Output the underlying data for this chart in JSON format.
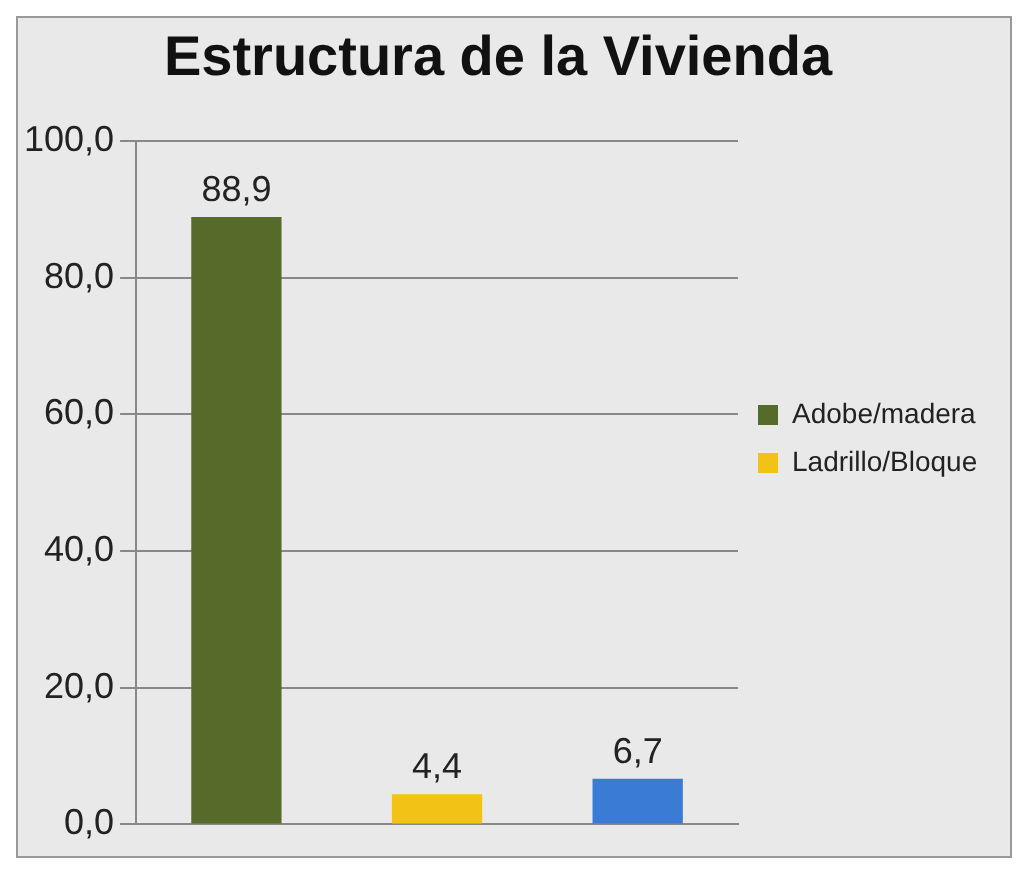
{
  "chart_data": {
    "type": "bar",
    "title": "Estructura de la Vivienda",
    "categories": [
      null,
      null,
      null
    ],
    "series": [
      {
        "name": "Adobe/madera",
        "color": "#566b2a",
        "values": [
          88.9,
          null,
          null
        ],
        "value_labels": [
          "88,9",
          null,
          null
        ]
      },
      {
        "name": "Ladrillo/Bloque",
        "color": "#f2c314",
        "values": [
          null,
          4.4,
          null
        ],
        "value_labels": [
          null,
          "4,4",
          null
        ]
      },
      {
        "color": "#3a7bd5",
        "values": [
          null,
          null,
          6.7
        ],
        "value_labels": [
          null,
          null,
          "6,7"
        ]
      }
    ],
    "ylim": [
      0,
      100
    ],
    "yticks": [
      {
        "value": 0,
        "label": "0,0"
      },
      {
        "value": 20,
        "label": "20,0"
      },
      {
        "value": 40,
        "label": "40,0"
      },
      {
        "value": 60,
        "label": "60,0"
      },
      {
        "value": 80,
        "label": "80,0"
      },
      {
        "value": 100,
        "label": "100,0"
      }
    ],
    "grid": "y",
    "legend": "right"
  }
}
